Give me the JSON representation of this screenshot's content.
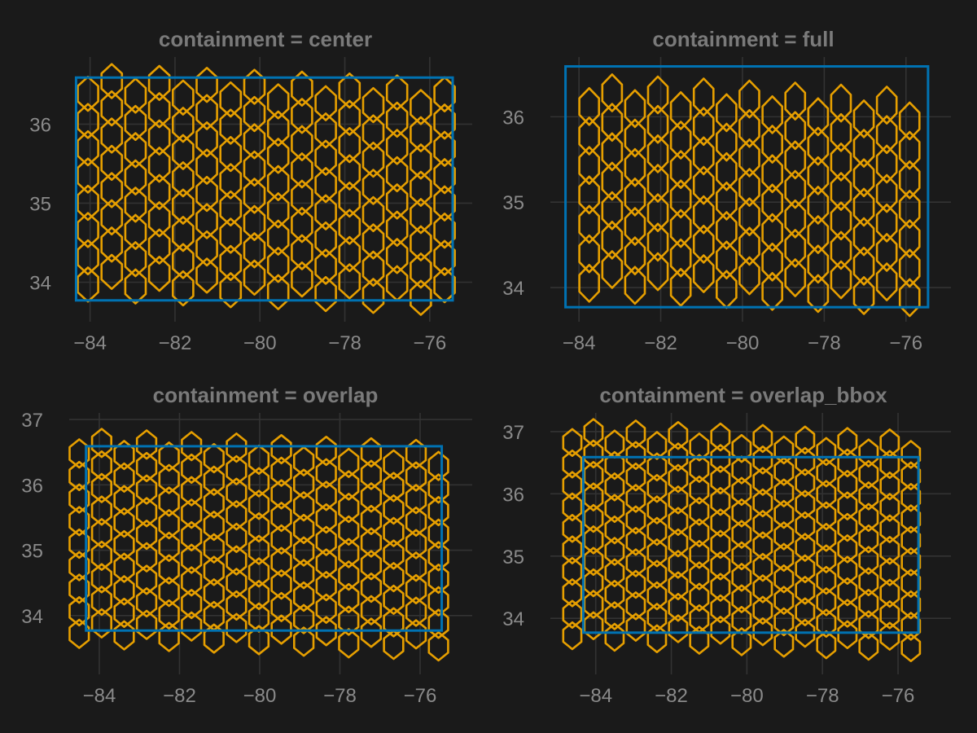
{
  "colors": {
    "background": "#1a1a1a",
    "grid": "#333333",
    "bbox": "#0072b2",
    "hexagon": "#e69f00"
  },
  "chart_data": [
    {
      "type": "scatter",
      "title": "containment = center",
      "xticks": [
        "−84",
        "−82",
        "−80",
        "−78",
        "−76"
      ],
      "yticks": [
        "34",
        "35",
        "36"
      ],
      "xlim": [
        -84.3,
        -75.0
      ],
      "ylim": [
        33.5,
        36.85
      ],
      "bbox": {
        "xmin": -84.33,
        "xmax": -75.46,
        "ymin": 33.77,
        "ymax": 36.59
      },
      "hex_grid": {
        "col_dx": 0.56,
        "row_dy": 0.345,
        "x0": -84.05,
        "y0": 33.97,
        "cols": 16,
        "rows": 8,
        "hex_width": 0.48,
        "hex_height": 0.43
      }
    },
    {
      "type": "scatter",
      "title": "containment = full",
      "xticks": [
        "−84",
        "−82",
        "−80",
        "−78",
        "−76"
      ],
      "yticks": [
        "34",
        "35",
        "36"
      ],
      "xlim": [
        -84.7,
        -74.9
      ],
      "ylim": [
        33.6,
        36.7
      ],
      "bbox": {
        "xmin": -84.33,
        "xmax": -75.46,
        "ymin": 33.77,
        "ymax": 36.59
      },
      "hex_grid": {
        "col_dx": 0.56,
        "row_dy": 0.345,
        "x0": -83.75,
        "y0": 34.05,
        "cols": 15,
        "rows": 7,
        "hex_width": 0.48,
        "hex_height": 0.43
      }
    },
    {
      "type": "scatter",
      "title": "containment = overlap",
      "xticks": [
        "−84",
        "−82",
        "−80",
        "−78",
        "−76"
      ],
      "yticks": [
        "34",
        "35",
        "36",
        "37"
      ],
      "xlim": [
        -84.75,
        -74.7
      ],
      "ylim": [
        33.1,
        37.1
      ],
      "bbox": {
        "xmin": -84.33,
        "xmax": -75.46,
        "ymin": 33.77,
        "ymax": 36.59
      },
      "hex_grid": {
        "col_dx": 0.56,
        "row_dy": 0.345,
        "x0": -84.5,
        "y0": 33.72,
        "cols": 17,
        "rows": 9,
        "hex_width": 0.48,
        "hex_height": 0.43
      }
    },
    {
      "type": "scatter",
      "title": "containment = overlap_bbox",
      "xticks": [
        "−84",
        "−82",
        "−80",
        "−78",
        "−76"
      ],
      "yticks": [
        "34",
        "35",
        "36",
        "37"
      ],
      "xlim": [
        -85.2,
        -74.6
      ],
      "ylim": [
        33.1,
        37.3
      ],
      "bbox": {
        "xmin": -84.33,
        "xmax": -75.46,
        "ymin": 33.77,
        "ymax": 36.59
      },
      "hex_grid": {
        "col_dx": 0.56,
        "row_dy": 0.345,
        "x0": -84.62,
        "y0": 33.72,
        "cols": 17,
        "rows": 10,
        "hex_width": 0.48,
        "hex_height": 0.43
      }
    }
  ]
}
